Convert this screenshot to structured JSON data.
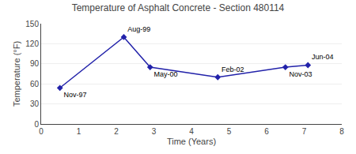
{
  "chart_data": {
    "type": "line",
    "title": "Temperature of Asphalt Concrete - Section 480114",
    "xlabel": "Time (Years)",
    "ylabel": "Temperature (°F)",
    "x": [
      0.5,
      2.2,
      2.9,
      4.7,
      6.5,
      7.1
    ],
    "values": [
      54,
      130,
      85,
      70,
      85,
      88
    ],
    "annotations": [
      "Nov-97",
      "Aug-99",
      "May-00",
      "Feb-02",
      "Nov-03",
      "Jun-04"
    ],
    "color": "#2222aa",
    "marker": "diamond",
    "xlim": [
      0,
      8
    ],
    "ylim": [
      0,
      150
    ],
    "xticks": [
      0,
      1,
      2,
      3,
      4,
      5,
      6,
      7,
      8
    ],
    "yticks": [
      0,
      30,
      60,
      90,
      120,
      150
    ],
    "grid": "y"
  }
}
